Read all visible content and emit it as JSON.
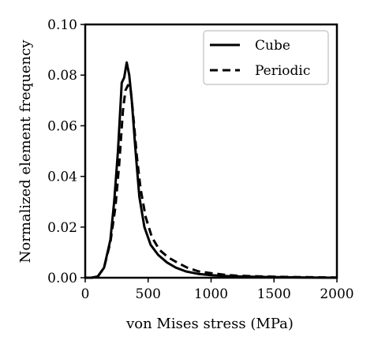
{
  "chart_data": {
    "type": "line",
    "xlabel": "von Mises stress (MPa)",
    "ylabel": "Normalized element frequency",
    "xlim": [
      0,
      2000
    ],
    "ylim": [
      0,
      0.1
    ],
    "xticks": [
      0,
      500,
      1000,
      1500,
      2000
    ],
    "xtick_labels": [
      "0",
      "500",
      "1000",
      "1500",
      "2000"
    ],
    "yticks": [
      0.0,
      0.02,
      0.04,
      0.06,
      0.08,
      0.1
    ],
    "ytick_labels": [
      "0.00",
      "0.02",
      "0.04",
      "0.06",
      "0.08",
      "0.10"
    ],
    "grid": false,
    "legend_position": "top-right",
    "series": [
      {
        "name": "Cube",
        "style": "solid",
        "color": "#000000",
        "x": [
          0,
          50,
          100,
          150,
          200,
          230,
          260,
          290,
          310,
          330,
          350,
          370,
          400,
          430,
          470,
          520,
          580,
          650,
          720,
          800,
          900,
          1000,
          1100,
          1200,
          1400,
          1600,
          1800,
          2000
        ],
        "y": [
          0.0,
          0.0,
          0.0005,
          0.004,
          0.015,
          0.03,
          0.05,
          0.077,
          0.079,
          0.085,
          0.08,
          0.07,
          0.05,
          0.032,
          0.02,
          0.013,
          0.009,
          0.006,
          0.004,
          0.0025,
          0.0015,
          0.001,
          0.0007,
          0.0005,
          0.0003,
          0.0002,
          0.0001,
          0.0
        ]
      },
      {
        "name": "Periodic",
        "style": "dashed",
        "color": "#000000",
        "x": [
          0,
          50,
          100,
          150,
          200,
          240,
          270,
          300,
          320,
          340,
          360,
          380,
          410,
          440,
          480,
          530,
          590,
          660,
          730,
          810,
          900,
          1000,
          1100,
          1200,
          1400,
          1600,
          1800,
          2000
        ],
        "y": [
          0.0,
          0.0,
          0.0005,
          0.004,
          0.014,
          0.028,
          0.045,
          0.066,
          0.074,
          0.076,
          0.075,
          0.065,
          0.048,
          0.035,
          0.024,
          0.016,
          0.011,
          0.008,
          0.006,
          0.004,
          0.0025,
          0.0018,
          0.0012,
          0.0008,
          0.0005,
          0.0003,
          0.0002,
          0.0001
        ]
      }
    ]
  }
}
